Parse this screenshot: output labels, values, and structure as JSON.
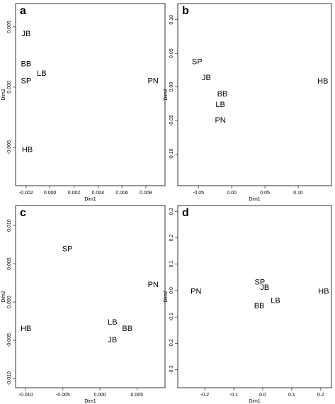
{
  "chart_data": [
    {
      "type": "scatter",
      "title": "a",
      "x_label": "Dim1",
      "y_label": "Dim2",
      "labels": [
        "JB",
        "BB",
        "LB",
        "SP",
        "PN",
        "HB"
      ],
      "x": [
        -0.002,
        -0.002,
        -0.0007,
        -0.002,
        0.0086,
        -0.0019
      ],
      "y": [
        0.0044,
        0.0019,
        0.0011,
        0.0005,
        0.0005,
        -0.0052
      ],
      "xlim": [
        -0.00288,
        0.0096
      ],
      "ylim": [
        -0.00818,
        0.00694
      ],
      "xticks": [
        -0.002,
        {
          "value": 0,
          "label": "0.000"
        },
        0.002,
        0.004,
        0.006,
        0.008
      ],
      "yticks": [
        -0.005,
        {
          "value": 0,
          "label": "0.000"
        },
        0.005
      ]
    },
    {
      "type": "scatter",
      "title": "b",
      "x_label": "Dim1",
      "y_label": "Dim2",
      "labels": [
        "SP",
        "JB",
        "BB",
        "LB",
        "PN",
        "HB"
      ],
      "x": [
        -0.052,
        -0.038,
        -0.014,
        -0.017,
        -0.017,
        0.137
      ],
      "y": [
        0.037,
        0.013,
        -0.011,
        -0.027,
        -0.05,
        0.008
      ],
      "xlim": [
        -0.081,
        0.15
      ],
      "ylim": [
        -0.147,
        0.124
      ],
      "xticks": [
        -0.05,
        {
          "value": 0,
          "label": "0.00"
        },
        0.05,
        {
          "value": 0.1,
          "label": "0.10"
        }
      ],
      "yticks": [
        {
          "value": -0.1,
          "label": "-0.10"
        },
        -0.05,
        {
          "value": 0,
          "label": "0.00"
        },
        0.05,
        {
          "value": 0.1,
          "label": "0.10"
        }
      ]
    },
    {
      "type": "scatter",
      "title": "c",
      "x_label": "Dim1",
      "y_label": "Dim2",
      "labels": [
        "SP",
        "PN",
        "HB",
        "LB",
        "BB",
        "JB"
      ],
      "x": [
        -0.0044,
        0.0072,
        -0.01,
        0.0017,
        0.0037,
        0.0017
      ],
      "y": [
        0.0069,
        0.0022,
        -0.0035,
        -0.0027,
        -0.0035,
        -0.005
      ],
      "xlim": [
        -0.0114,
        0.0088
      ],
      "ylim": [
        -0.0112,
        0.0126
      ],
      "xticks": [
        {
          "value": -0.01,
          "label": "-0.010"
        },
        -0.005,
        {
          "value": 0,
          "label": "0.000"
        },
        0.005
      ],
      "yticks": [
        {
          "value": -0.01,
          "label": "-0.010"
        },
        -0.005,
        {
          "value": 0,
          "label": "0.000"
        },
        0.005,
        {
          "value": 0.01,
          "label": "0.010"
        }
      ]
    },
    {
      "type": "scatter",
      "title": "d",
      "x_label": "Dim1",
      "y_label": "Dim2",
      "labels": [
        "PN",
        "SP",
        "JB",
        "LB",
        "BB",
        "HB"
      ],
      "x": [
        -0.23,
        -0.01,
        0.007,
        0.044,
        -0.012,
        0.21
      ],
      "y": [
        -0.005,
        0.03,
        0.01,
        -0.04,
        -0.06,
        -0.005
      ],
      "xlim": [
        -0.293,
        0.237
      ],
      "ylim": [
        -0.368,
        0.322
      ],
      "xticks": [
        -0.2,
        -0.1,
        {
          "value": 0,
          "label": "0.0"
        },
        0.1,
        0.2
      ],
      "yticks": [
        -0.3,
        -0.2,
        -0.1,
        {
          "value": 0,
          "label": "0.0"
        },
        0.1,
        0.2,
        0.3
      ]
    }
  ]
}
